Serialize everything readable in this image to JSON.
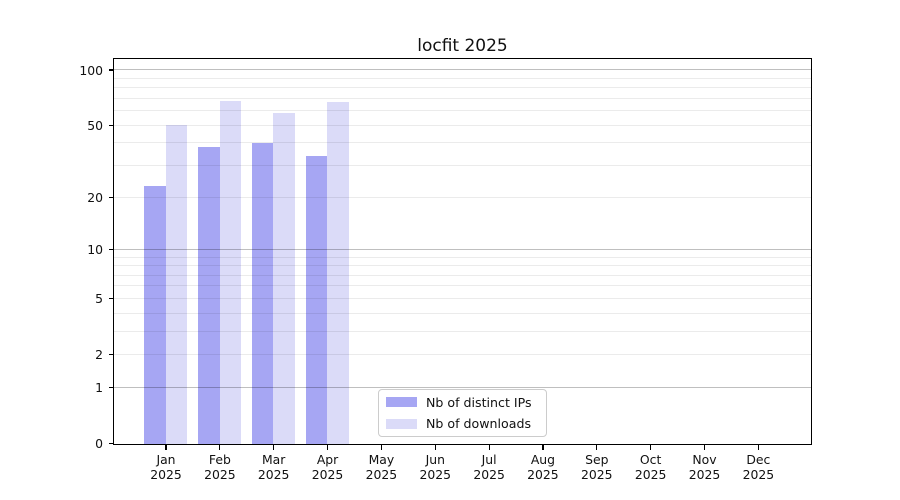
{
  "chart_data": {
    "type": "bar",
    "title": "locfit 2025",
    "year_label": "2025",
    "categories": [
      "Jan",
      "Feb",
      "Mar",
      "Apr",
      "May",
      "Jun",
      "Jul",
      "Aug",
      "Sep",
      "Oct",
      "Nov",
      "Dec"
    ],
    "series": [
      {
        "name": "Nb of distinct IPs",
        "color": "#a6a6f3",
        "values": [
          23,
          38,
          40,
          34,
          0,
          0,
          0,
          0,
          0,
          0,
          0,
          0
        ]
      },
      {
        "name": "Nb of downloads",
        "color": "#dbdbf8",
        "values": [
          50,
          68,
          58,
          67,
          0,
          0,
          0,
          0,
          0,
          0,
          0,
          0
        ]
      }
    ],
    "yscale": "log1p",
    "ylim": [
      0,
      115
    ],
    "y_ticks": [
      100,
      50,
      20,
      10,
      5,
      2,
      1,
      0
    ],
    "y_major_gridlines": [
      100,
      10,
      1
    ],
    "y_minor_gridlines": [
      90,
      80,
      70,
      60,
      50,
      40,
      30,
      20,
      9,
      8,
      7,
      6,
      5,
      4,
      3,
      2
    ],
    "legend": {
      "position": "lower center"
    },
    "grid": true,
    "colors": {
      "background": "#ffffff",
      "text": "#111111",
      "spine": "#000000",
      "grid_major": "rgba(0,0,0,0.25)",
      "grid_minor": "rgba(0,0,0,0.08)",
      "legend_border": "#cccccc"
    }
  }
}
